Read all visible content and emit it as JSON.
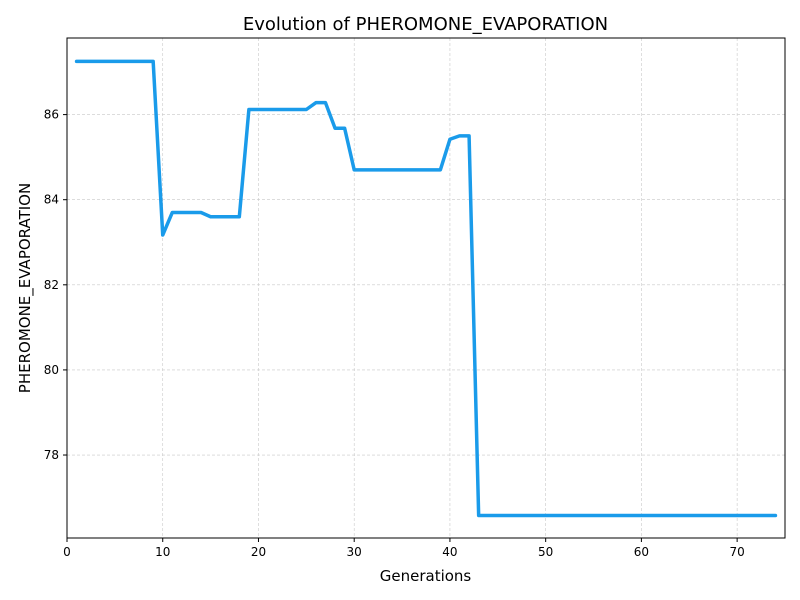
{
  "chart_data": {
    "type": "line",
    "title": "Evolution of PHEROMONE_EVAPORATION",
    "xlabel": "Generations",
    "ylabel": "PHEROMONE_EVAPORATION",
    "xlim": [
      0,
      75
    ],
    "ylim": [
      76.05,
      87.8
    ],
    "xticks": [
      0,
      10,
      20,
      30,
      40,
      50,
      60,
      70
    ],
    "yticks": [
      78,
      80,
      82,
      84,
      86
    ],
    "grid": true,
    "line_color": "#1a9bea",
    "series": [
      {
        "x": [
          1,
          2,
          3,
          4,
          5,
          6,
          7,
          8,
          9,
          10,
          11,
          12,
          13,
          14,
          15,
          16,
          17,
          18,
          19,
          20,
          21,
          22,
          23,
          24,
          25,
          26,
          27,
          28,
          29,
          30,
          31,
          32,
          33,
          34,
          35,
          36,
          37,
          38,
          39,
          40,
          41,
          42,
          43,
          44,
          45,
          46,
          47,
          48,
          49,
          50,
          51,
          52,
          53,
          54,
          55,
          56,
          57,
          58,
          59,
          60,
          61,
          62,
          63,
          64,
          65,
          66,
          67,
          68,
          69,
          70,
          71,
          72,
          73,
          74
        ],
        "y": [
          87.25,
          87.25,
          87.25,
          87.25,
          87.25,
          87.25,
          87.25,
          87.25,
          87.25,
          83.17,
          83.7,
          83.7,
          83.7,
          83.7,
          83.6,
          83.6,
          83.6,
          83.6,
          86.12,
          86.12,
          86.12,
          86.12,
          86.12,
          86.12,
          86.12,
          86.28,
          86.28,
          85.68,
          85.68,
          84.7,
          84.7,
          84.7,
          84.7,
          84.7,
          84.7,
          84.7,
          84.7,
          84.7,
          84.7,
          85.42,
          85.5,
          85.5,
          76.58,
          76.58,
          76.58,
          76.58,
          76.58,
          76.58,
          76.58,
          76.58,
          76.58,
          76.58,
          76.58,
          76.58,
          76.58,
          76.58,
          76.58,
          76.58,
          76.58,
          76.58,
          76.58,
          76.58,
          76.58,
          76.58,
          76.58,
          76.58,
          76.58,
          76.58,
          76.58,
          76.58,
          76.58,
          76.58,
          76.58,
          76.58
        ]
      }
    ]
  }
}
